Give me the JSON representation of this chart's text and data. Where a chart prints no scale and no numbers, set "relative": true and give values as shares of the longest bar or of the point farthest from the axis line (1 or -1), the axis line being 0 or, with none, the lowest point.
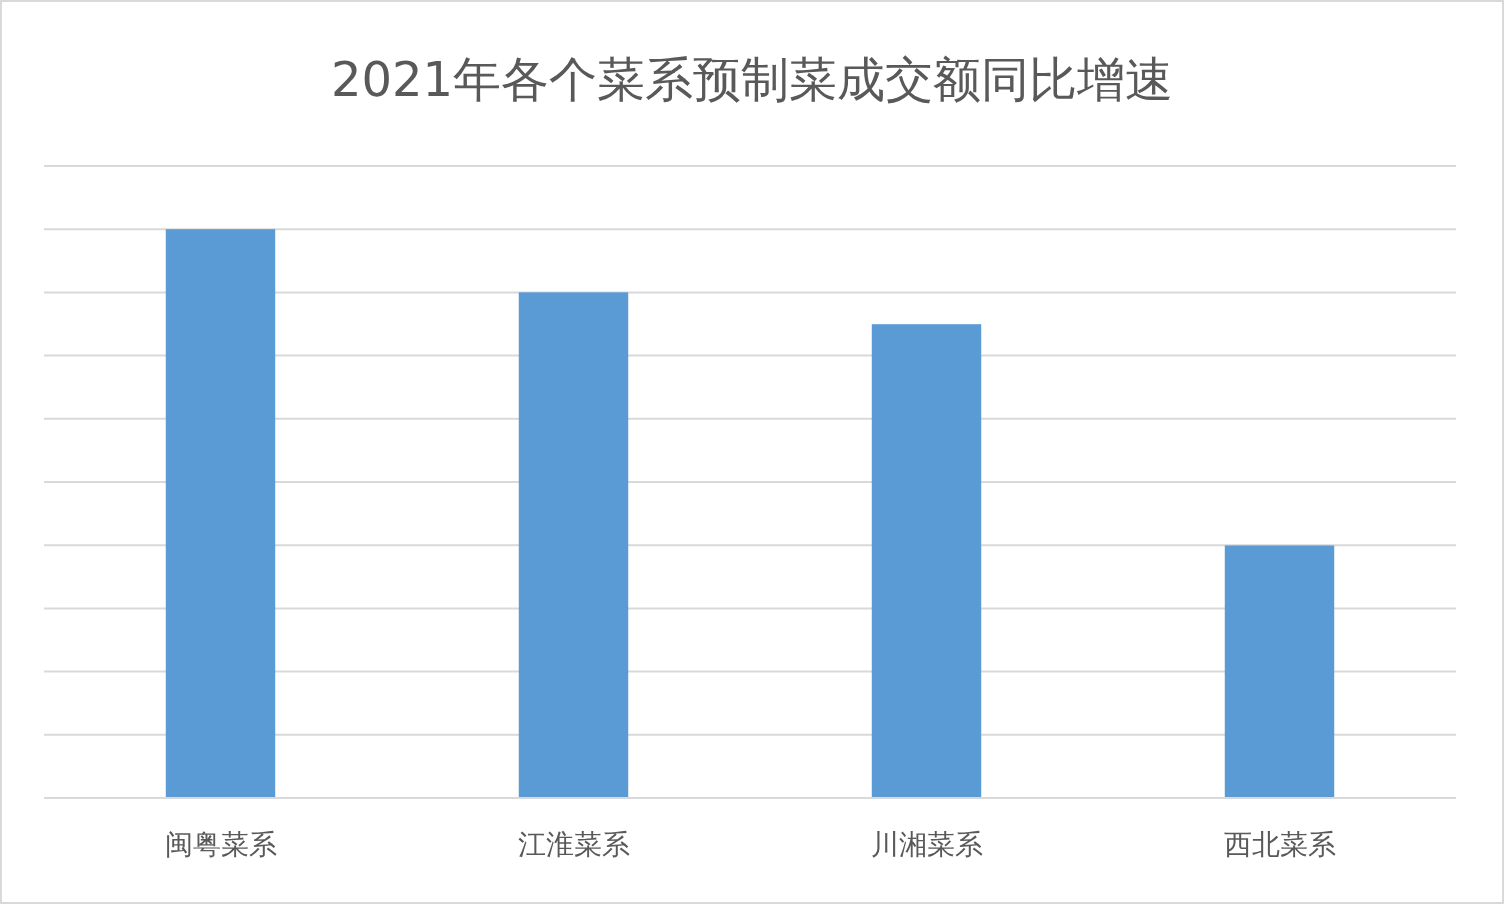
{
  "chart_data": {
    "type": "bar",
    "title": "2021年各个菜系预制菜成交额同比增速",
    "categories": [
      "闽粤菜系",
      "江淮菜系",
      "川湘菜系",
      "西北菜系"
    ],
    "values": [
      1,
      0.889,
      0.833,
      0.444
    ],
    "color": "#5b9bd5",
    "relative": true,
    "grid": "y"
  }
}
